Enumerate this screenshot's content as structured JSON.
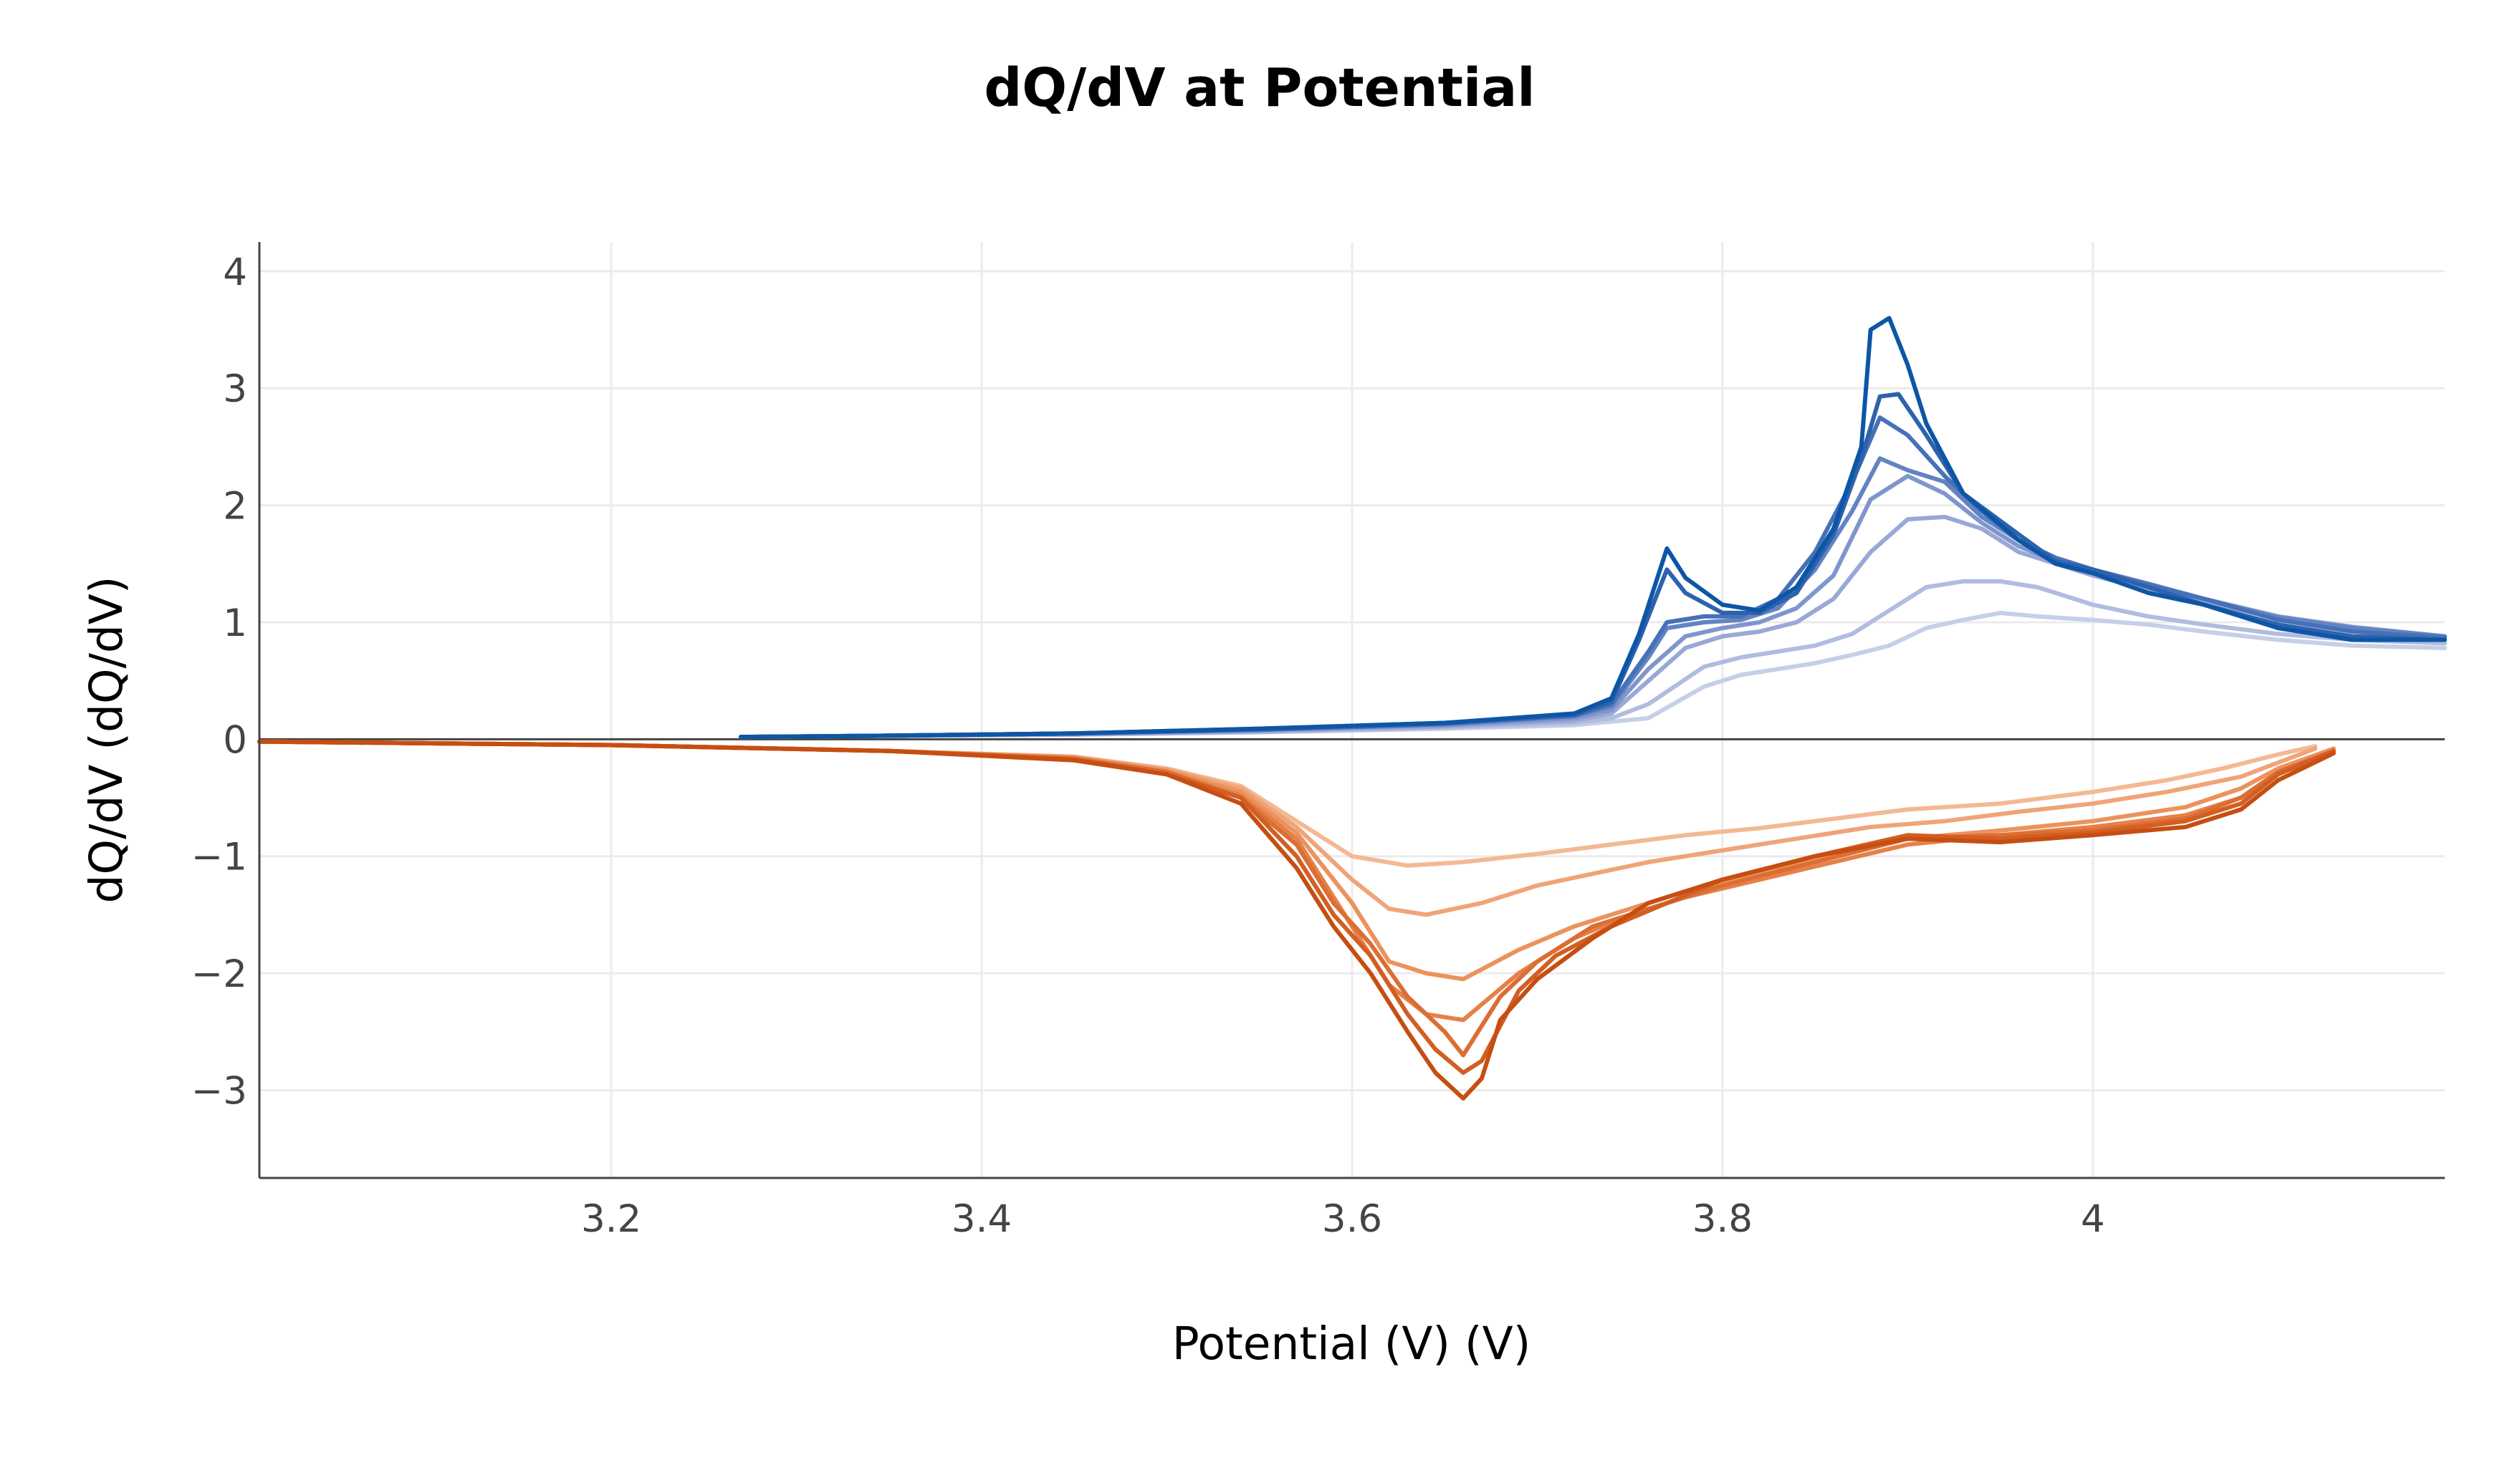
{
  "chart_data": {
    "type": "line",
    "title": "dQ/dV at Potential",
    "xlabel": "Potential (V) (V)",
    "ylabel": "dQ/dV (dQ/dV)",
    "xlim": [
      3.01,
      4.19
    ],
    "ylim": [
      -3.75,
      4.25
    ],
    "xticks": [
      3.2,
      3.4,
      3.6,
      3.8,
      4.0
    ],
    "xtick_labels": [
      "3.2",
      "3.4",
      "3.6",
      "3.8",
      "4"
    ],
    "yticks": [
      -3,
      -2,
      -1,
      0,
      1,
      2,
      3,
      4
    ],
    "ytick_labels": [
      "−3",
      "−2",
      "−1",
      "0",
      "1",
      "2",
      "3",
      "4"
    ],
    "grid": true,
    "legend": "none",
    "charge_series": [
      {
        "color": "#0d56a6",
        "x": [
          3.27,
          3.35,
          3.45,
          3.55,
          3.65,
          3.72,
          3.74,
          3.755,
          3.77,
          3.78,
          3.8,
          3.82,
          3.84,
          3.86,
          3.875,
          3.88,
          3.89,
          3.9,
          3.91,
          3.93,
          3.96,
          3.98,
          4.0,
          4.03,
          4.06,
          4.1,
          4.14,
          4.19
        ],
        "y": [
          0.02,
          0.03,
          0.05,
          0.09,
          0.14,
          0.22,
          0.35,
          0.9,
          1.63,
          1.38,
          1.15,
          1.1,
          1.3,
          1.8,
          2.5,
          3.5,
          3.6,
          3.2,
          2.7,
          2.1,
          1.7,
          1.5,
          1.42,
          1.25,
          1.15,
          0.95,
          0.85,
          0.85
        ]
      },
      {
        "color": "#2d62ad",
        "x": [
          3.27,
          3.35,
          3.45,
          3.55,
          3.65,
          3.72,
          3.74,
          3.755,
          3.77,
          3.78,
          3.8,
          3.82,
          3.84,
          3.86,
          3.875,
          3.885,
          3.895,
          3.91,
          3.93,
          3.96,
          3.98,
          4.0,
          4.03,
          4.06,
          4.1,
          4.14,
          4.19
        ],
        "y": [
          0.02,
          0.03,
          0.05,
          0.09,
          0.14,
          0.21,
          0.32,
          0.85,
          1.45,
          1.25,
          1.08,
          1.08,
          1.25,
          1.75,
          2.4,
          2.93,
          2.95,
          2.6,
          2.1,
          1.75,
          1.52,
          1.45,
          1.3,
          1.15,
          0.98,
          0.88,
          0.85
        ]
      },
      {
        "color": "#4671b8",
        "x": [
          3.27,
          3.35,
          3.45,
          3.55,
          3.65,
          3.72,
          3.74,
          3.76,
          3.77,
          3.79,
          3.81,
          3.83,
          3.85,
          3.87,
          3.885,
          3.9,
          3.92,
          3.94,
          3.96,
          3.98,
          4.0,
          4.03,
          4.06,
          4.1,
          4.14,
          4.19
        ],
        "y": [
          0.02,
          0.03,
          0.05,
          0.08,
          0.13,
          0.2,
          0.3,
          0.75,
          1.0,
          1.05,
          1.05,
          1.2,
          1.6,
          2.2,
          2.75,
          2.6,
          2.25,
          1.95,
          1.7,
          1.55,
          1.45,
          1.32,
          1.2,
          1.02,
          0.92,
          0.87
        ]
      },
      {
        "color": "#6383c3",
        "x": [
          3.27,
          3.35,
          3.45,
          3.55,
          3.65,
          3.72,
          3.74,
          3.76,
          3.77,
          3.79,
          3.81,
          3.83,
          3.85,
          3.87,
          3.885,
          3.9,
          3.92,
          3.94,
          3.96,
          3.98,
          4.0,
          4.03,
          4.06,
          4.1,
          4.14,
          4.19
        ],
        "y": [
          0.02,
          0.03,
          0.05,
          0.08,
          0.13,
          0.2,
          0.28,
          0.7,
          0.95,
          1.0,
          1.02,
          1.12,
          1.45,
          1.95,
          2.4,
          2.3,
          2.2,
          1.9,
          1.7,
          1.55,
          1.45,
          1.33,
          1.2,
          1.04,
          0.95,
          0.88
        ]
      },
      {
        "color": "#7f95cd",
        "x": [
          3.27,
          3.35,
          3.45,
          3.55,
          3.65,
          3.72,
          3.74,
          3.76,
          3.78,
          3.8,
          3.82,
          3.84,
          3.86,
          3.88,
          3.9,
          3.92,
          3.94,
          3.96,
          3.98,
          4.0,
          4.03,
          4.06,
          4.1,
          4.14,
          4.19
        ],
        "y": [
          0.02,
          0.03,
          0.05,
          0.08,
          0.12,
          0.18,
          0.25,
          0.6,
          0.88,
          0.95,
          1.0,
          1.12,
          1.4,
          2.05,
          2.25,
          2.1,
          1.85,
          1.65,
          1.52,
          1.42,
          1.3,
          1.2,
          1.05,
          0.96,
          0.88
        ]
      },
      {
        "color": "#99a8d6",
        "x": [
          3.27,
          3.35,
          3.45,
          3.55,
          3.65,
          3.72,
          3.74,
          3.76,
          3.78,
          3.8,
          3.82,
          3.84,
          3.86,
          3.88,
          3.9,
          3.92,
          3.94,
          3.96,
          3.98,
          4.0,
          4.03,
          4.06,
          4.1,
          4.14,
          4.19
        ],
        "y": [
          0.02,
          0.03,
          0.04,
          0.07,
          0.11,
          0.16,
          0.22,
          0.5,
          0.78,
          0.88,
          0.92,
          1.0,
          1.2,
          1.6,
          1.88,
          1.9,
          1.8,
          1.6,
          1.5,
          1.4,
          1.28,
          1.18,
          1.03,
          0.95,
          0.87
        ]
      },
      {
        "color": "#b0bce0",
        "x": [
          3.27,
          3.35,
          3.45,
          3.55,
          3.65,
          3.72,
          3.74,
          3.76,
          3.79,
          3.81,
          3.83,
          3.85,
          3.87,
          3.89,
          3.91,
          3.93,
          3.95,
          3.97,
          4.0,
          4.03,
          4.06,
          4.1,
          4.14,
          4.19
        ],
        "y": [
          0.02,
          0.03,
          0.04,
          0.06,
          0.1,
          0.14,
          0.18,
          0.3,
          0.62,
          0.7,
          0.75,
          0.8,
          0.9,
          1.1,
          1.3,
          1.35,
          1.35,
          1.3,
          1.15,
          1.05,
          0.98,
          0.9,
          0.85,
          0.82
        ]
      },
      {
        "color": "#c6cfe8",
        "x": [
          3.27,
          3.35,
          3.45,
          3.55,
          3.65,
          3.72,
          3.74,
          3.76,
          3.79,
          3.81,
          3.83,
          3.85,
          3.87,
          3.89,
          3.91,
          3.93,
          3.95,
          3.97,
          4.0,
          4.03,
          4.06,
          4.1,
          4.14,
          4.19
        ],
        "y": [
          0.02,
          0.03,
          0.04,
          0.06,
          0.09,
          0.12,
          0.15,
          0.18,
          0.45,
          0.55,
          0.6,
          0.65,
          0.72,
          0.8,
          0.95,
          1.02,
          1.08,
          1.05,
          1.02,
          0.98,
          0.92,
          0.85,
          0.8,
          0.78
        ]
      }
    ],
    "discharge_series": [
      {
        "color": "#c64e12",
        "x": [
          3.01,
          3.2,
          3.35,
          3.45,
          3.5,
          3.54,
          3.57,
          3.59,
          3.61,
          3.63,
          3.645,
          3.66,
          3.67,
          3.68,
          3.7,
          3.73,
          3.76,
          3.8,
          3.85,
          3.9,
          3.95,
          4.0,
          4.05,
          4.08,
          4.1,
          4.13
        ],
        "y": [
          -0.02,
          -0.05,
          -0.1,
          -0.18,
          -0.3,
          -0.55,
          -1.1,
          -1.6,
          -2.0,
          -2.5,
          -2.85,
          -3.07,
          -2.9,
          -2.4,
          -2.05,
          -1.7,
          -1.4,
          -1.2,
          -1.0,
          -0.85,
          -0.88,
          -0.82,
          -0.75,
          -0.6,
          -0.35,
          -0.12
        ]
      },
      {
        "color": "#d25e22",
        "x": [
          3.01,
          3.2,
          3.35,
          3.45,
          3.5,
          3.54,
          3.57,
          3.59,
          3.61,
          3.63,
          3.645,
          3.66,
          3.67,
          3.69,
          3.71,
          3.74,
          3.77,
          3.8,
          3.85,
          3.9,
          3.95,
          4.0,
          4.05,
          4.08,
          4.1,
          4.13
        ],
        "y": [
          -0.02,
          -0.05,
          -0.1,
          -0.17,
          -0.3,
          -0.5,
          -1.0,
          -1.5,
          -1.85,
          -2.35,
          -2.65,
          -2.85,
          -2.75,
          -2.15,
          -1.85,
          -1.6,
          -1.4,
          -1.2,
          -1.0,
          -0.82,
          -0.85,
          -0.8,
          -0.7,
          -0.55,
          -0.3,
          -0.1
        ]
      },
      {
        "color": "#dc6e33",
        "x": [
          3.01,
          3.2,
          3.35,
          3.45,
          3.5,
          3.54,
          3.57,
          3.59,
          3.61,
          3.63,
          3.65,
          3.66,
          3.68,
          3.7,
          3.73,
          3.76,
          3.8,
          3.85,
          3.9,
          3.95,
          4.0,
          4.05,
          4.08,
          4.1,
          4.13
        ],
        "y": [
          -0.02,
          -0.05,
          -0.1,
          -0.17,
          -0.28,
          -0.5,
          -0.9,
          -1.4,
          -1.75,
          -2.2,
          -2.5,
          -2.7,
          -2.2,
          -1.9,
          -1.6,
          -1.45,
          -1.25,
          -1.05,
          -0.85,
          -0.82,
          -0.78,
          -0.68,
          -0.5,
          -0.28,
          -0.1
        ]
      },
      {
        "color": "#e58148",
        "x": [
          3.01,
          3.2,
          3.35,
          3.45,
          3.5,
          3.54,
          3.57,
          3.6,
          3.62,
          3.64,
          3.66,
          3.69,
          3.72,
          3.75,
          3.78,
          3.82,
          3.86,
          3.9,
          3.95,
          4.0,
          4.05,
          4.08,
          4.1,
          4.13
        ],
        "y": [
          -0.02,
          -0.05,
          -0.1,
          -0.16,
          -0.28,
          -0.48,
          -0.85,
          -1.6,
          -2.1,
          -2.35,
          -2.4,
          -2.0,
          -1.7,
          -1.5,
          -1.35,
          -1.2,
          -1.05,
          -0.9,
          -0.82,
          -0.75,
          -0.65,
          -0.5,
          -0.28,
          -0.1
        ]
      },
      {
        "color": "#ec925d",
        "x": [
          3.01,
          3.2,
          3.35,
          3.45,
          3.5,
          3.54,
          3.57,
          3.6,
          3.62,
          3.64,
          3.66,
          3.69,
          3.72,
          3.75,
          3.78,
          3.82,
          3.86,
          3.9,
          3.95,
          4.0,
          4.05,
          4.08,
          4.1,
          4.13
        ],
        "y": [
          -0.02,
          -0.05,
          -0.1,
          -0.16,
          -0.27,
          -0.45,
          -0.8,
          -1.4,
          -1.9,
          -2.0,
          -2.05,
          -1.8,
          -1.6,
          -1.45,
          -1.3,
          -1.15,
          -1.0,
          -0.85,
          -0.78,
          -0.7,
          -0.58,
          -0.42,
          -0.25,
          -0.08
        ]
      },
      {
        "color": "#f0a478",
        "x": [
          3.01,
          3.2,
          3.35,
          3.45,
          3.5,
          3.54,
          3.57,
          3.6,
          3.62,
          3.64,
          3.67,
          3.7,
          3.73,
          3.76,
          3.8,
          3.84,
          3.88,
          3.92,
          3.96,
          4.0,
          4.04,
          4.08,
          4.1,
          4.12
        ],
        "y": [
          -0.02,
          -0.05,
          -0.1,
          -0.15,
          -0.26,
          -0.42,
          -0.75,
          -1.2,
          -1.45,
          -1.5,
          -1.4,
          -1.25,
          -1.15,
          -1.05,
          -0.95,
          -0.85,
          -0.75,
          -0.7,
          -0.62,
          -0.55,
          -0.45,
          -0.32,
          -0.2,
          -0.08
        ]
      },
      {
        "color": "#f4b895",
        "x": [
          3.01,
          3.2,
          3.35,
          3.45,
          3.5,
          3.54,
          3.57,
          3.6,
          3.63,
          3.66,
          3.7,
          3.74,
          3.78,
          3.82,
          3.86,
          3.9,
          3.95,
          4.0,
          4.04,
          4.07,
          4.1,
          4.12
        ],
        "y": [
          -0.02,
          -0.05,
          -0.1,
          -0.15,
          -0.25,
          -0.4,
          -0.7,
          -1.0,
          -1.08,
          -1.05,
          -0.98,
          -0.9,
          -0.82,
          -0.76,
          -0.68,
          -0.6,
          -0.55,
          -0.45,
          -0.35,
          -0.25,
          -0.13,
          -0.06
        ]
      }
    ]
  }
}
